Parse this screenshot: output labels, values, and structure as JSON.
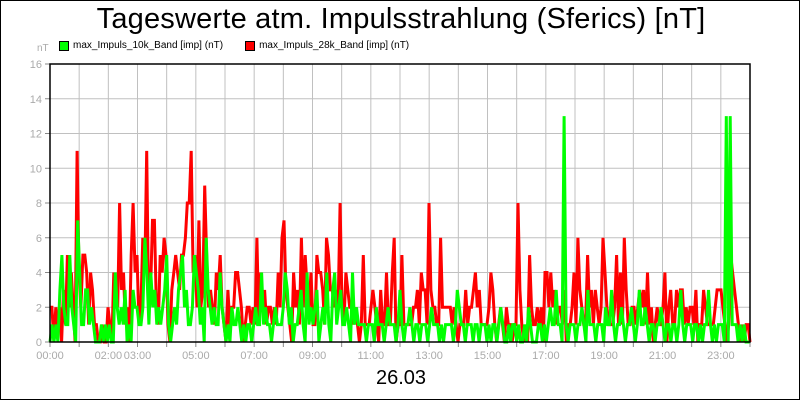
{
  "chart_data": {
    "type": "line",
    "title": "Tageswerte atm. Impulsstrahlung (Sferics) [nT]",
    "xlabel": "26.03",
    "ylabel": "nT",
    "ylim": [
      0,
      16
    ],
    "yticks": [
      0,
      2,
      4,
      6,
      8,
      10,
      12,
      14,
      16
    ],
    "xlim_hours": [
      0,
      24
    ],
    "xtick_labels": [
      {
        "h": 0,
        "label": "00:00"
      },
      {
        "h": 2,
        "label": "02:00"
      },
      {
        "h": 3,
        "label": "03:00"
      },
      {
        "h": 5,
        "label": "05:00"
      },
      {
        "h": 7,
        "label": "07:00"
      },
      {
        "h": 9,
        "label": "09:00"
      },
      {
        "h": 11,
        "label": "11:00"
      },
      {
        "h": 13,
        "label": "13:00"
      },
      {
        "h": 15,
        "label": "15:00"
      },
      {
        "h": 17,
        "label": "17:00"
      },
      {
        "h": 19,
        "label": "19:00"
      },
      {
        "h": 21,
        "label": "21:00"
      },
      {
        "h": 23,
        "label": "23:00"
      }
    ],
    "grid": true,
    "legend_position": "top",
    "interval_minutes": 5,
    "series": [
      {
        "name": "max_Impuls_28k_Band [imp] (nT)",
        "color": "#ff0000",
        "values": [
          2,
          2,
          0,
          2,
          1,
          2,
          0,
          3,
          1,
          5,
          2,
          4,
          2,
          0,
          11,
          4,
          2,
          5,
          5,
          4,
          1,
          4,
          3,
          1,
          1,
          0,
          0,
          1,
          0,
          0,
          2,
          1,
          0,
          4,
          3,
          2,
          8,
          3,
          4,
          1,
          2,
          0,
          5,
          8,
          4,
          5,
          1,
          2,
          6,
          4,
          11,
          2,
          3,
          7,
          7,
          2,
          1,
          5,
          4,
          6,
          5,
          1,
          0,
          3,
          4,
          5,
          4,
          3,
          5,
          5,
          6,
          8,
          8,
          11,
          4,
          5,
          2,
          7,
          2,
          3,
          9,
          5,
          2,
          3,
          2,
          1,
          4,
          3,
          5,
          2,
          1,
          0,
          3,
          1,
          2,
          2,
          4,
          4,
          3,
          2,
          0,
          1,
          2,
          2,
          1,
          2,
          1,
          6,
          1,
          4,
          2,
          3,
          1,
          2,
          2,
          1,
          2,
          1,
          4,
          2,
          6,
          7,
          3,
          2,
          1,
          0,
          4,
          2,
          3,
          1,
          6,
          2,
          5,
          3,
          2,
          4,
          1,
          1,
          5,
          4,
          4,
          3,
          1,
          6,
          5,
          3,
          3,
          2,
          3,
          2,
          8,
          2,
          1,
          4,
          3,
          2,
          2,
          1,
          2,
          1,
          0,
          1,
          5,
          1,
          1,
          1,
          2,
          3,
          2,
          1,
          0,
          3,
          1,
          1,
          4,
          1,
          1,
          4,
          6,
          0,
          1,
          1,
          5,
          1,
          1,
          1,
          1,
          1,
          2,
          2,
          3,
          1,
          4,
          3,
          3,
          1,
          8,
          3,
          2,
          2,
          1,
          1,
          6,
          2,
          2,
          2,
          2,
          2,
          1,
          2,
          1,
          0,
          1,
          1,
          1,
          3,
          1,
          2,
          2,
          3,
          4,
          2,
          3,
          1,
          1,
          1,
          1,
          2,
          4,
          3,
          1,
          0,
          1,
          2,
          1,
          0,
          2,
          1,
          1,
          0,
          1,
          1,
          8,
          3,
          1,
          0,
          1,
          0,
          5,
          2,
          1,
          1,
          2,
          1,
          2,
          0,
          4,
          4,
          2,
          4,
          2,
          3,
          1,
          2,
          2,
          1,
          3,
          0,
          1,
          1,
          2,
          4,
          1,
          6,
          3,
          2,
          1,
          1,
          5,
          2,
          3,
          1,
          3,
          2,
          1,
          2,
          6,
          4,
          2,
          1,
          1,
          1,
          2,
          5,
          1,
          4,
          1,
          6,
          3,
          1,
          1,
          2,
          2,
          1,
          2,
          3,
          2,
          3,
          1,
          4,
          1,
          2,
          0,
          1,
          2,
          1,
          1,
          2,
          4,
          0,
          2,
          3,
          1,
          1,
          3,
          2,
          3,
          3,
          1,
          2,
          1,
          2,
          2,
          1,
          3,
          0,
          1,
          1,
          3,
          2,
          1,
          1,
          1,
          1,
          2,
          3,
          3,
          3,
          2,
          1,
          0,
          1,
          5,
          4,
          3,
          2,
          1,
          0,
          1,
          0,
          1,
          1,
          0
        ]
      },
      {
        "name": "max_Impuls_10k_Band [imp] (nT)",
        "color": "#00ff00",
        "values": [
          0,
          1,
          0,
          1,
          0,
          3,
          5,
          2,
          1,
          1,
          5,
          2,
          1,
          0,
          7,
          4,
          1,
          1,
          3,
          3,
          1,
          2,
          1,
          0,
          0,
          0,
          1,
          0,
          1,
          0,
          1,
          0,
          0,
          4,
          2,
          1,
          2,
          1,
          3,
          0,
          1,
          0,
          3,
          2,
          2,
          1,
          1,
          2,
          6,
          4,
          1,
          4,
          2,
          3,
          1,
          2,
          1,
          2,
          3,
          5,
          1,
          0,
          1,
          2,
          1,
          3,
          4,
          5,
          2,
          3,
          1,
          1,
          2,
          5,
          4,
          3,
          1,
          2,
          0,
          6,
          3,
          2,
          1,
          2,
          1,
          1,
          4,
          2,
          1,
          0,
          1,
          0,
          2,
          1,
          1,
          2,
          1,
          0,
          1,
          0,
          1,
          1,
          0,
          1,
          2,
          1,
          1,
          4,
          1,
          2,
          1,
          1,
          0,
          1,
          2,
          1,
          1,
          1,
          2,
          4,
          3,
          1,
          2,
          0,
          1,
          1,
          2,
          3,
          1,
          0,
          4,
          1,
          2,
          1,
          2,
          3,
          0,
          1,
          2,
          1,
          4,
          1,
          0,
          3,
          4,
          1,
          2,
          3,
          1,
          1,
          2,
          1,
          0,
          4,
          1,
          2,
          1,
          1,
          1,
          1,
          0,
          1,
          1,
          1,
          0,
          2,
          1,
          1,
          1,
          0,
          1,
          2,
          1,
          1,
          1,
          0,
          1,
          3,
          1,
          0,
          1,
          1,
          2,
          1,
          0,
          1,
          1,
          0,
          1,
          1,
          1,
          0,
          1,
          2,
          1,
          1,
          1,
          0,
          1,
          0,
          1,
          1,
          1,
          1,
          0,
          1,
          3,
          2,
          1,
          1,
          0,
          1,
          1,
          1,
          0,
          1,
          1,
          0,
          1,
          1,
          1,
          0,
          1,
          0,
          1,
          1,
          0,
          1,
          2,
          1,
          0,
          0,
          1,
          0,
          1,
          1,
          0,
          1,
          0,
          0,
          1,
          0,
          2,
          1,
          0,
          0,
          0,
          1,
          1,
          0,
          1,
          0,
          1,
          2,
          1,
          1,
          3,
          1,
          1,
          0,
          13,
          1,
          0,
          1,
          1,
          1,
          0,
          1,
          1,
          2,
          1,
          0,
          3,
          1,
          1,
          1,
          0,
          1,
          1,
          1,
          0,
          2,
          1,
          1,
          3,
          1,
          0,
          1,
          1,
          2,
          1,
          0,
          1,
          1,
          2,
          1,
          0,
          1,
          3,
          1,
          1,
          2,
          1,
          0,
          1,
          1,
          0,
          1,
          1,
          2,
          1,
          0,
          1,
          1,
          0,
          1,
          1,
          0,
          1,
          3,
          1,
          0,
          1,
          1,
          1,
          0,
          1,
          1,
          0,
          1,
          0,
          1,
          1,
          3,
          1,
          0,
          1,
          0,
          1,
          1,
          1,
          0,
          13,
          0,
          13,
          1,
          1,
          1,
          0,
          1,
          0,
          1,
          0,
          0,
          0
        ]
      }
    ]
  },
  "legend": {
    "items": [
      {
        "label": "max_Impuls_10k_Band [imp] (nT)",
        "color": "#00ff00"
      },
      {
        "label": "max_Impuls_28k_Band [imp] (nT)",
        "color": "#ff0000"
      }
    ]
  },
  "colors": {
    "grid": "#c0c0c0",
    "axis": "#000000",
    "tick_label": "#aaaaaa"
  }
}
